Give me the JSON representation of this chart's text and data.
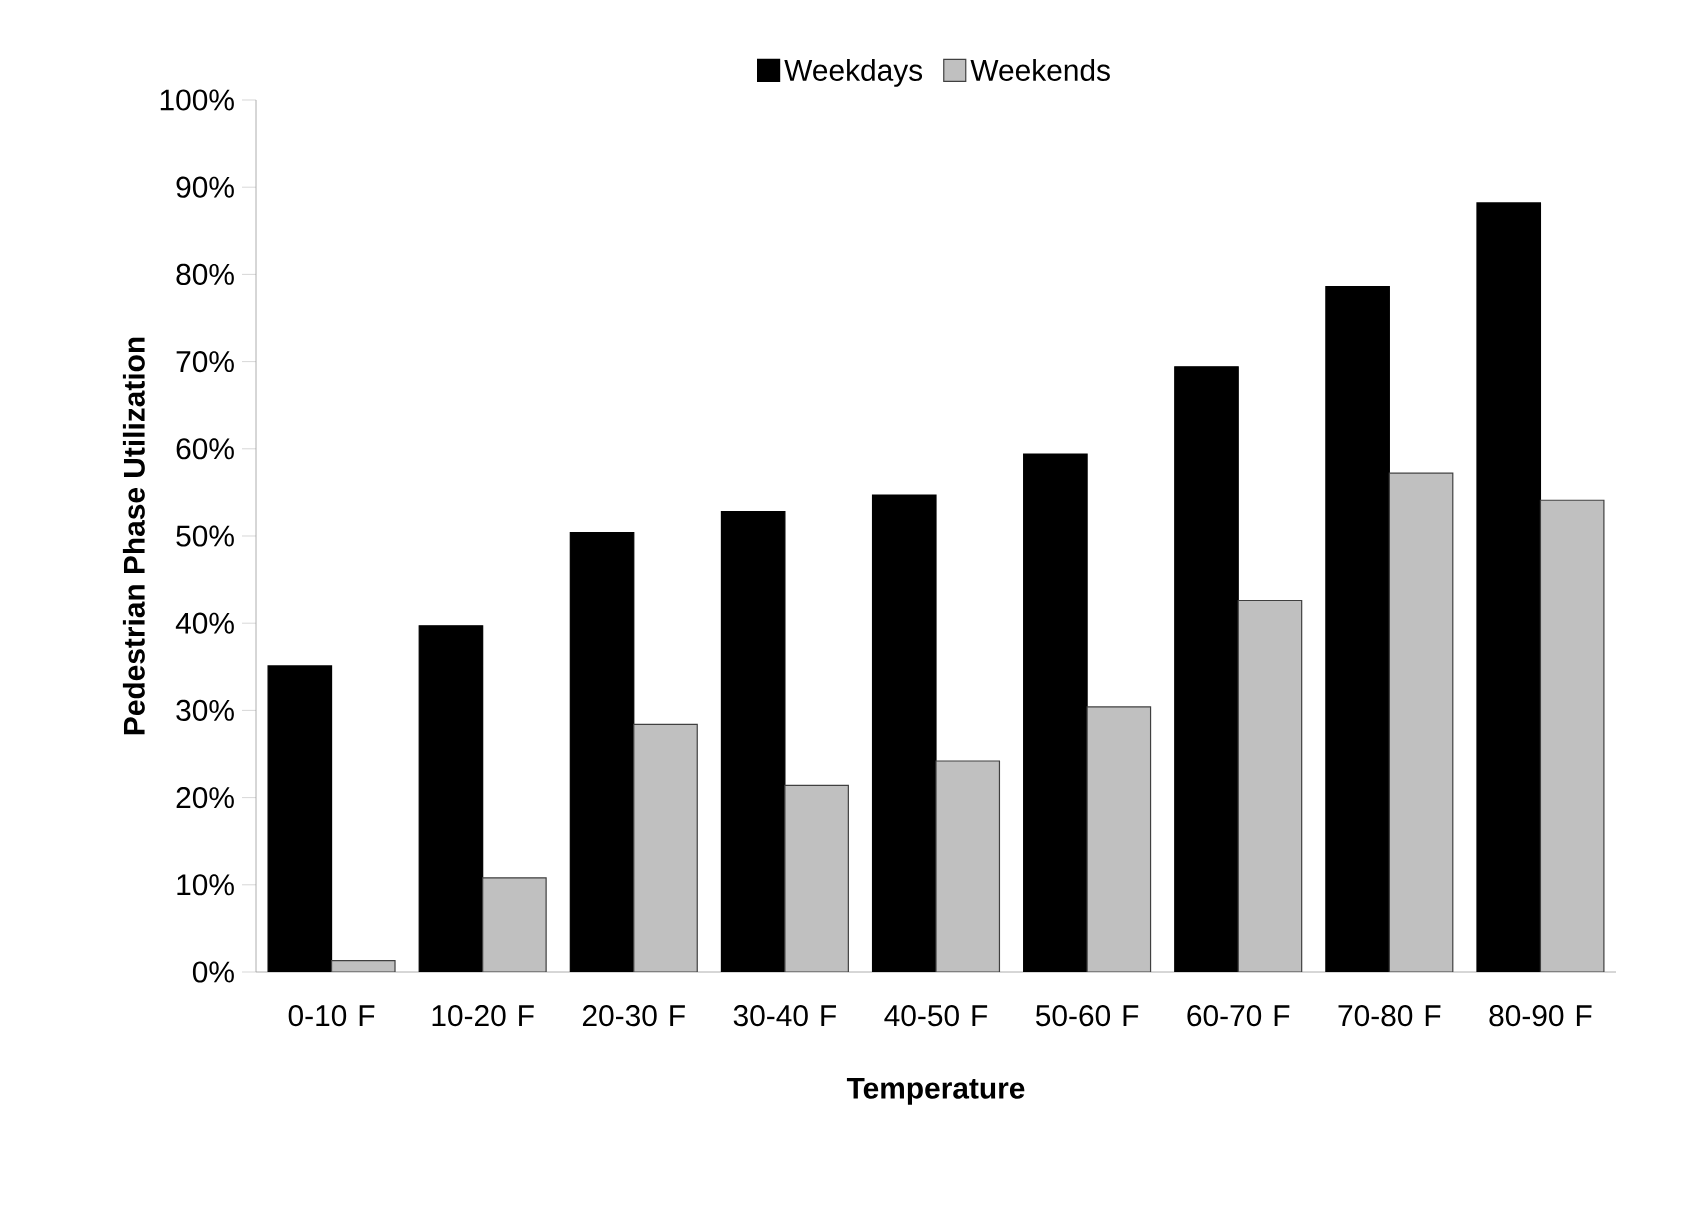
{
  "chart_data": {
    "type": "bar",
    "xlabel": "Temperature",
    "ylabel": "Pedestrian Phase Utilization",
    "categories": [
      "0-10 F",
      "10-20 F",
      "20-30 F",
      "30-40 F",
      "40-50 F",
      "50-60 F",
      "60-70 F",
      "70-80 F",
      "80-90 F"
    ],
    "series": [
      {
        "name": "Weekdays",
        "color": "#000000",
        "values": [
          35.1,
          39.7,
          50.4,
          52.8,
          54.7,
          59.4,
          69.4,
          78.6,
          88.2
        ]
      },
      {
        "name": "Weekends",
        "color": "#c0c0c0",
        "values": [
          1.3,
          10.8,
          28.4,
          21.4,
          24.2,
          30.4,
          42.6,
          57.2,
          54.1
        ]
      }
    ],
    "ylim": [
      0,
      100
    ],
    "yticks": [
      {
        "value": 0,
        "label": "0%"
      },
      {
        "value": 10,
        "label": "10%"
      },
      {
        "value": 20,
        "label": "20%"
      },
      {
        "value": 30,
        "label": "30%"
      },
      {
        "value": 40,
        "label": "40%"
      },
      {
        "value": 50,
        "label": "50%"
      },
      {
        "value": 60,
        "label": "60%"
      },
      {
        "value": 70,
        "label": "70%"
      },
      {
        "value": 80,
        "label": "80%"
      },
      {
        "value": 90,
        "label": "90%"
      },
      {
        "value": 100,
        "label": "100%"
      }
    ],
    "grid": false,
    "legend": "top"
  }
}
